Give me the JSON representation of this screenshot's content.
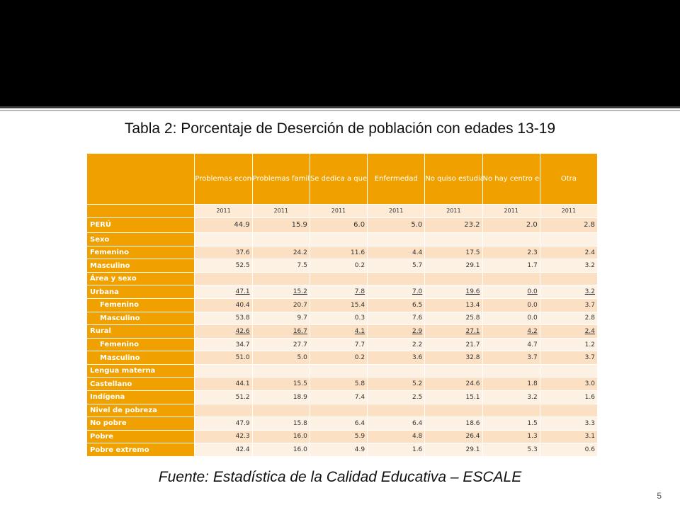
{
  "title": "Tabla 2: Porcentaje de Deserción de población con edades 13-19",
  "source": "Fuente: Estadística de la Calidad Educativa – ESCALE",
  "page_number": "5",
  "colors": {
    "accent": "#f0a100",
    "band": "#000000",
    "cell_light": "#fdf1e4",
    "cell_dark": "#fbe0c4"
  },
  "table": {
    "columns": [
      "Problemas económicos",
      "Problemas familiares",
      "Se dedica a quehaceres del hogar",
      "Enfermedad",
      "No quiso estudiar",
      "No hay centro educativo",
      "Otra"
    ],
    "year": "2011",
    "rows": [
      {
        "label": "PERÚ",
        "values": [
          "44.9",
          "15.9",
          "6.0",
          "5.0",
          "23.2",
          "2.0",
          "2.8"
        ]
      },
      {
        "label": "Sexo",
        "values": [
          "",
          "",
          "",
          "",
          "",
          "",
          ""
        ]
      },
      {
        "label": "Femenino",
        "values": [
          "37.6",
          "24.2",
          "11.6",
          "4.4",
          "17.5",
          "2.3",
          "2.4"
        ]
      },
      {
        "label": "Masculino",
        "values": [
          "52.5",
          "7.5",
          "0.2",
          "5.7",
          "29.1",
          "1.7",
          "3.2"
        ]
      },
      {
        "label": "Área y sexo",
        "values": [
          "",
          "",
          "",
          "",
          "",
          "",
          ""
        ]
      },
      {
        "label": "Urbana",
        "values": [
          "47.1",
          "15.2",
          "7.8",
          "7.0",
          "19.6",
          "0.0",
          "3.2"
        ]
      },
      {
        "label": "Femenino",
        "values": [
          "40.4",
          "20.7",
          "15.4",
          "6.5",
          "13.4",
          "0.0",
          "3.7"
        ]
      },
      {
        "label": "Masculino",
        "values": [
          "53.8",
          "9.7",
          "0.3",
          "7.6",
          "25.8",
          "0.0",
          "2.8"
        ]
      },
      {
        "label": "Rural",
        "values": [
          "42.6",
          "16.7",
          "4.1",
          "2.9",
          "27.1",
          "4.2",
          "2.4"
        ]
      },
      {
        "label": "Femenino",
        "values": [
          "34.7",
          "27.7",
          "7.7",
          "2.2",
          "21.7",
          "4.7",
          "1.2"
        ]
      },
      {
        "label": "Masculino",
        "values": [
          "51.0",
          "5.0",
          "0.2",
          "3.6",
          "32.8",
          "3.7",
          "3.7"
        ]
      },
      {
        "label": "Lengua materna",
        "values": [
          "",
          "",
          "",
          "",
          "",
          "",
          ""
        ]
      },
      {
        "label": "Castellano",
        "values": [
          "44.1",
          "15.5",
          "5.8",
          "5.2",
          "24.6",
          "1.8",
          "3.0"
        ]
      },
      {
        "label": "Indígena",
        "values": [
          "51.2",
          "18.9",
          "7.4",
          "2.5",
          "15.1",
          "3.2",
          "1.6"
        ]
      },
      {
        "label": "Nivel de pobreza",
        "values": [
          "",
          "",
          "",
          "",
          "",
          "",
          ""
        ]
      },
      {
        "label": "No pobre",
        "values": [
          "47.9",
          "15.8",
          "6.4",
          "6.4",
          "18.6",
          "1.5",
          "3.3"
        ]
      },
      {
        "label": "Pobre",
        "values": [
          "42.3",
          "16.0",
          "5.9",
          "4.8",
          "26.4",
          "1.3",
          "3.1"
        ]
      },
      {
        "label": "Pobre extremo",
        "values": [
          "42.4",
          "16.0",
          "4.9",
          "1.6",
          "29.1",
          "5.3",
          "0.6"
        ]
      }
    ]
  }
}
